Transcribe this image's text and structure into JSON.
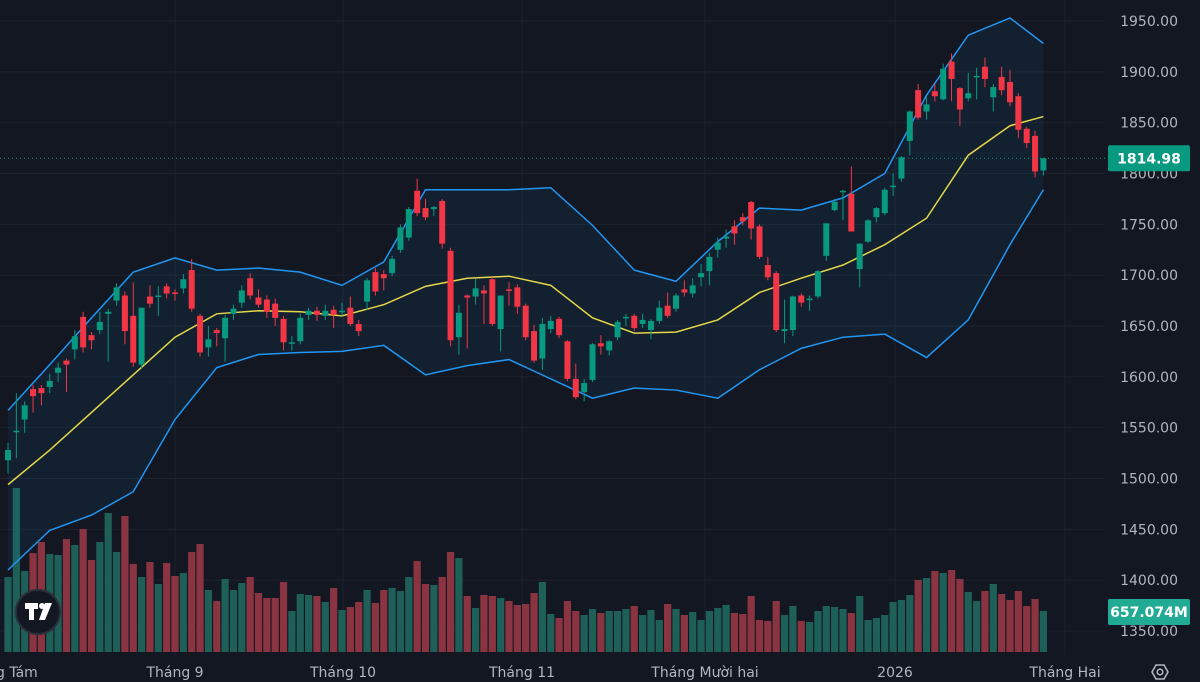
{
  "chart_data": {
    "type": "candlestick",
    "price_axis": {
      "ticks": [
        "1950.00",
        "1900.00",
        "1850.00",
        "1800.00",
        "1750.00",
        "1700.00",
        "1650.00",
        "1600.00",
        "1550.00",
        "1500.00",
        "1450.00",
        "1400.00",
        "1350.00"
      ],
      "ylim": [
        1325,
        1970
      ]
    },
    "time_axis": {
      "ticks": [
        "g Tám",
        "Tháng 9",
        "Tháng 10",
        "Tháng 11",
        "Tháng Mười hai",
        "2026",
        "Tháng Hai"
      ]
    },
    "last_price": "1814.98",
    "last_volume": "657.074M",
    "grid": true,
    "colors": {
      "up": "#089981",
      "down": "#f23645",
      "up_volume": "#1e5f58",
      "down_volume": "#8b3441",
      "bb_band": "#2196f3",
      "bb_basis": "#e5d64a",
      "background": "#131722",
      "grid": "#1e222d"
    },
    "candles_ohlc": [
      [
        1518,
        1535,
        1505,
        1528
      ],
      [
        1546,
        1584,
        1520,
        1547
      ],
      [
        1558,
        1576,
        1545,
        1572
      ],
      [
        1588,
        1592,
        1565,
        1581
      ],
      [
        1589,
        1592,
        1572,
        1584
      ],
      [
        1590,
        1603,
        1584,
        1596
      ],
      [
        1604,
        1614,
        1595,
        1609
      ],
      [
        1616,
        1618,
        1585,
        1612
      ],
      [
        1627,
        1646,
        1617,
        1640
      ],
      [
        1659,
        1664,
        1624,
        1629
      ],
      [
        1641,
        1644,
        1627,
        1636
      ],
      [
        1646,
        1664,
        1642,
        1654
      ],
      [
        1662,
        1667,
        1615,
        1664
      ],
      [
        1675,
        1692,
        1670,
        1688
      ],
      [
        1680,
        1684,
        1632,
        1645
      ],
      [
        1660,
        1693,
        1610,
        1614
      ],
      [
        1612,
        1668,
        1608,
        1668
      ],
      [
        1679,
        1690,
        1668,
        1672
      ],
      [
        1679,
        1689,
        1660,
        1680
      ],
      [
        1689,
        1692,
        1677,
        1682
      ],
      [
        1683,
        1686,
        1675,
        1682
      ],
      [
        1687,
        1701,
        1682,
        1696
      ],
      [
        1705,
        1716,
        1664,
        1667
      ],
      [
        1660,
        1662,
        1620,
        1624
      ],
      [
        1629,
        1650,
        1620,
        1637
      ],
      [
        1646,
        1648,
        1630,
        1643
      ],
      [
        1638,
        1661,
        1615,
        1658
      ],
      [
        1662,
        1671,
        1656,
        1667
      ],
      [
        1673,
        1690,
        1668,
        1685
      ],
      [
        1697,
        1702,
        1676,
        1680
      ],
      [
        1678,
        1686,
        1668,
        1671
      ],
      [
        1676,
        1680,
        1658,
        1664
      ],
      [
        1672,
        1677,
        1650,
        1658
      ],
      [
        1657,
        1660,
        1626,
        1634
      ],
      [
        1633,
        1640,
        1626,
        1634
      ],
      [
        1635,
        1662,
        1632,
        1658
      ],
      [
        1661,
        1668,
        1656,
        1665
      ],
      [
        1665,
        1669,
        1655,
        1661
      ],
      [
        1660,
        1671,
        1656,
        1665
      ],
      [
        1666,
        1670,
        1648,
        1661
      ],
      [
        1664,
        1673,
        1660,
        1665
      ],
      [
        1668,
        1679,
        1650,
        1652
      ],
      [
        1652,
        1656,
        1640,
        1645
      ],
      [
        1674,
        1697,
        1666,
        1695
      ],
      [
        1703,
        1707,
        1680,
        1684
      ],
      [
        1701,
        1705,
        1685,
        1697
      ],
      [
        1702,
        1719,
        1699,
        1716
      ],
      [
        1725,
        1750,
        1722,
        1747
      ],
      [
        1737,
        1767,
        1734,
        1765
      ],
      [
        1783,
        1795,
        1758,
        1761
      ],
      [
        1766,
        1775,
        1754,
        1757
      ],
      [
        1765,
        1768,
        1758,
        1767
      ],
      [
        1773,
        1775,
        1726,
        1731
      ],
      [
        1724,
        1727,
        1630,
        1636
      ],
      [
        1639,
        1671,
        1622,
        1663
      ],
      [
        1680,
        1681,
        1628,
        1678
      ],
      [
        1679,
        1697,
        1671,
        1687
      ],
      [
        1685,
        1690,
        1652,
        1682
      ],
      [
        1696,
        1698,
        1650,
        1652
      ],
      [
        1647,
        1680,
        1625,
        1680
      ],
      [
        1686,
        1693,
        1670,
        1685
      ],
      [
        1688,
        1691,
        1662,
        1669
      ],
      [
        1670,
        1672,
        1636,
        1639
      ],
      [
        1645,
        1651,
        1614,
        1616
      ],
      [
        1618,
        1658,
        1607,
        1652
      ],
      [
        1647,
        1660,
        1643,
        1655
      ],
      [
        1657,
        1659,
        1638,
        1641
      ],
      [
        1635,
        1636,
        1596,
        1598
      ],
      [
        1598,
        1613,
        1578,
        1580
      ],
      [
        1585,
        1598,
        1576,
        1594
      ],
      [
        1597,
        1633,
        1595,
        1632
      ],
      [
        1633,
        1641,
        1622,
        1630
      ],
      [
        1626,
        1636,
        1621,
        1635
      ],
      [
        1639,
        1656,
        1636,
        1654
      ],
      [
        1658,
        1662,
        1650,
        1659
      ],
      [
        1660,
        1662,
        1645,
        1648
      ],
      [
        1652,
        1662,
        1648,
        1656
      ],
      [
        1646,
        1657,
        1637,
        1655
      ],
      [
        1655,
        1675,
        1652,
        1668
      ],
      [
        1670,
        1683,
        1658,
        1660
      ],
      [
        1667,
        1682,
        1664,
        1680
      ],
      [
        1686,
        1695,
        1679,
        1683
      ],
      [
        1682,
        1697,
        1678,
        1690
      ],
      [
        1698,
        1711,
        1689,
        1702
      ],
      [
        1704,
        1722,
        1690,
        1718
      ],
      [
        1725,
        1737,
        1717,
        1732
      ],
      [
        1736,
        1745,
        1727,
        1738
      ],
      [
        1748,
        1754,
        1730,
        1741
      ],
      [
        1757,
        1761,
        1749,
        1753
      ],
      [
        1772,
        1773,
        1735,
        1746
      ],
      [
        1748,
        1750,
        1716,
        1718
      ],
      [
        1710,
        1718,
        1695,
        1698
      ],
      [
        1702,
        1704,
        1644,
        1646
      ],
      [
        1645,
        1676,
        1633,
        1647
      ],
      [
        1646,
        1680,
        1640,
        1679
      ],
      [
        1680,
        1682,
        1669,
        1673
      ],
      [
        1676,
        1680,
        1665,
        1677
      ],
      [
        1679,
        1705,
        1677,
        1704
      ],
      [
        1719,
        1751,
        1714,
        1751
      ],
      [
        1764,
        1775,
        1763,
        1772
      ],
      [
        1782,
        1784,
        1754,
        1783
      ],
      [
        1780,
        1807,
        1743,
        1743
      ],
      [
        1706,
        1731,
        1688,
        1731
      ],
      [
        1733,
        1755,
        1732,
        1754
      ],
      [
        1757,
        1767,
        1752,
        1766
      ],
      [
        1761,
        1786,
        1759,
        1784
      ],
      [
        1787,
        1800,
        1778,
        1788
      ],
      [
        1795,
        1817,
        1792,
        1816
      ],
      [
        1832,
        1862,
        1818,
        1861
      ],
      [
        1882,
        1888,
        1853,
        1855
      ],
      [
        1861,
        1876,
        1853,
        1868
      ],
      [
        1881,
        1888,
        1871,
        1876
      ],
      [
        1873,
        1908,
        1872,
        1903
      ],
      [
        1910,
        1918,
        1871,
        1893
      ],
      [
        1884,
        1885,
        1847,
        1863
      ],
      [
        1874,
        1899,
        1871,
        1879
      ],
      [
        1895,
        1904,
        1873,
        1896
      ],
      [
        1905,
        1914,
        1885,
        1893
      ],
      [
        1875,
        1888,
        1861,
        1885
      ],
      [
        1895,
        1905,
        1877,
        1882
      ],
      [
        1890,
        1902,
        1866,
        1870
      ],
      [
        1876,
        1879,
        1835,
        1843
      ],
      [
        1844,
        1846,
        1825,
        1830
      ],
      [
        1837,
        1842,
        1796,
        1802
      ],
      [
        1803,
        1815,
        1798,
        1814.98
      ]
    ],
    "volume_millions": [
      1200,
      2624,
      1296,
      1584,
      1760,
      1568,
      1552,
      1808,
      1712,
      1968,
      1472,
      1760,
      2224,
      1600,
      2176,
      1408,
      1200,
      1440,
      1088,
      1424,
      1216,
      1264,
      1600,
      1728,
      992,
      816,
      1168,
      992,
      1104,
      1200,
      944,
      864,
      864,
      1120,
      656,
      928,
      912,
      896,
      800,
      1024,
      672,
      720,
      800,
      992,
      784,
      992,
      1024,
      976,
      1200,
      1456,
      1088,
      1072,
      1200,
      1600,
      1504,
      896,
      704,
      912,
      896,
      864,
      816,
      752,
      768,
      944,
      1120,
      608,
      544,
      816,
      656,
      592,
      688,
      624,
      656,
      656,
      688,
      736,
      592,
      672,
      512,
      768,
      688,
      592,
      640,
      512,
      656,
      704,
      752,
      624,
      608,
      896,
      512,
      496,
      816,
      592,
      736,
      496,
      480,
      656,
      736,
      720,
      688,
      624,
      896,
      512,
      544,
      592,
      800,
      832,
      912,
      1152,
      1184,
      1296,
      1264,
      1312,
      1168,
      960,
      816,
      976,
      1088,
      928,
      832,
      976,
      736,
      848,
      657.074
    ],
    "bollinger": {
      "upper": [
        1567,
        1612,
        1658,
        1703,
        1717,
        1705,
        1707,
        1703,
        1690,
        1713,
        1784,
        1784,
        1784,
        1786,
        1749,
        1705,
        1694,
        1733,
        1766,
        1764,
        1776,
        1800,
        1877,
        1936,
        1953,
        1928
      ],
      "basis": [
        1494,
        1528,
        1565,
        1602,
        1639,
        1662,
        1665,
        1664,
        1660,
        1671,
        1689,
        1697,
        1699,
        1690,
        1658,
        1643,
        1644,
        1656,
        1683,
        1697,
        1710,
        1730,
        1756,
        1818,
        1847,
        1856
      ],
      "lower": [
        1410,
        1449,
        1464,
        1487,
        1558,
        1609,
        1622,
        1624,
        1625,
        1631,
        1602,
        1611,
        1617,
        1598,
        1579,
        1589,
        1587,
        1579,
        1607,
        1628,
        1639,
        1642,
        1619,
        1656,
        1730,
        1784
      ]
    }
  },
  "icons": {
    "logo": "tradingview-logo",
    "settings": "settings-gear-icon"
  }
}
